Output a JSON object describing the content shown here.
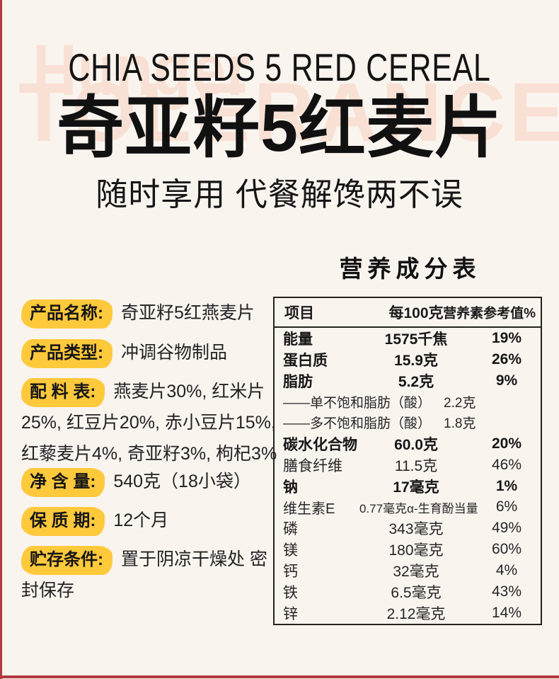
{
  "colors": {
    "background": "#FAF4EF",
    "accent_red": "#B23A3E",
    "highlight_yellow": "#FFC93C",
    "watermark_peach": "#F8E1D4",
    "text_black": "#161616"
  },
  "header": {
    "watermark_top": "Hunger",
    "watermark_back": "TOLERANCE",
    "title_en": "CHIA SEEDS 5 RED CEREAL",
    "title_zh": "奇亚籽5红麦片",
    "subtitle": "随时享用 代餐解馋两不误"
  },
  "product_info": {
    "fields": [
      {
        "label": "产品名称:",
        "value": "奇亚籽5红燕麦片"
      },
      {
        "label": "产品类型:",
        "value": "冲调谷物制品"
      },
      {
        "label": "配 料 表:",
        "value": "燕麦片30%, 红米片25%, 红豆片20%, 赤小豆片15%, 红藜麦片4%, 奇亚籽3%, 枸杞3%"
      },
      {
        "label": "净 含 量:",
        "value": "540克（18小袋）"
      },
      {
        "label": "保 质 期:",
        "value": "12个月"
      },
      {
        "label": "贮存条件:",
        "value": "置于阴凉干燥处 密封保存"
      }
    ]
  },
  "nutrition_table": {
    "title": "营养成分表",
    "headers": {
      "item": "项目",
      "per100g": "每100克",
      "nrv": "营养素参考值%"
    },
    "rows": [
      {
        "item": "能量",
        "per100g": "1575千焦",
        "nrv": "19%"
      },
      {
        "item": "蛋白质",
        "per100g": "15.9克",
        "nrv": "26%"
      },
      {
        "item": "脂肪",
        "per100g": "5.2克",
        "nrv": "9%"
      },
      {
        "item": "——单不饱和脂肪（酸）",
        "per100g": "2.2克",
        "nrv": ""
      },
      {
        "item": "——多不饱和脂肪（酸）",
        "per100g": "1.8克",
        "nrv": ""
      },
      {
        "item": "碳水化合物",
        "per100g": "60.0克",
        "nrv": "20%"
      },
      {
        "item": "膳食纤维",
        "per100g": "11.5克",
        "nrv": "46%"
      },
      {
        "item": "钠",
        "per100g": "17毫克",
        "nrv": "1%"
      },
      {
        "item": "维生素E",
        "per100g": "0.77毫克α-生育酚当量",
        "nrv": "6%"
      },
      {
        "item": "磷",
        "per100g": "343毫克",
        "nrv": "49%"
      },
      {
        "item": "镁",
        "per100g": "180毫克",
        "nrv": "60%"
      },
      {
        "item": "钙",
        "per100g": "32毫克",
        "nrv": "4%"
      },
      {
        "item": "铁",
        "per100g": "6.5毫克",
        "nrv": "43%"
      },
      {
        "item": "锌",
        "per100g": "2.12毫克",
        "nrv": "14%"
      }
    ]
  }
}
